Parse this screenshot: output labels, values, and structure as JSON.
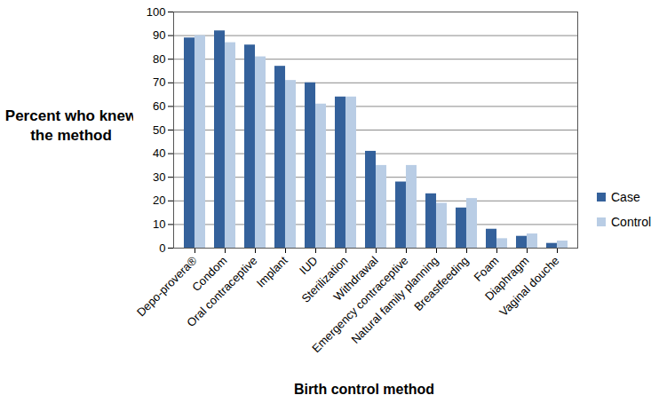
{
  "chart_data": {
    "type": "bar",
    "y_label": "Percent who knew the method",
    "x_label": "Birth control method",
    "categories": [
      "Depo-provera®",
      "Condom",
      "Oral contraceptive",
      "Implant",
      "IUD",
      "Sterilization",
      "Withdrawal",
      "Emergency contraceptive",
      "Natural family planning",
      "Breastfeeding",
      "Foam",
      "Diaphragm",
      "Vaginal douche"
    ],
    "series": [
      {
        "name": "Case",
        "color": "#34619b",
        "values": [
          89,
          92,
          86,
          77,
          70,
          64,
          41,
          28,
          23,
          17,
          8,
          5,
          2
        ]
      },
      {
        "name": "Control",
        "color": "#b9cde5",
        "values": [
          90,
          87,
          81,
          71,
          61,
          64,
          35,
          35,
          19,
          21,
          4,
          6,
          3
        ]
      }
    ],
    "ylim": [
      0,
      100
    ],
    "yticks": [
      0,
      10,
      20,
      30,
      40,
      50,
      60,
      70,
      80,
      90,
      100
    ],
    "grid": true,
    "legend": "right"
  }
}
